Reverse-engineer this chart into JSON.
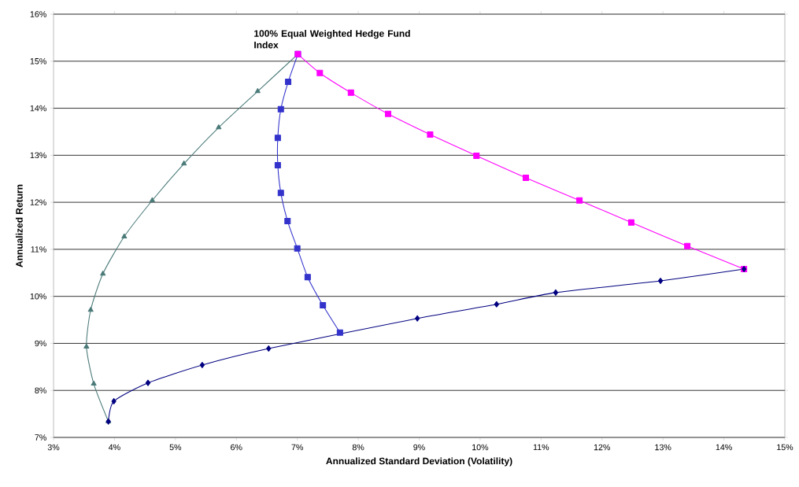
{
  "chart_data": {
    "type": "line",
    "xlabel": "Annualized Standard Deviation (Volatility)",
    "ylabel": "Annualized Return",
    "xlim": [
      3,
      15
    ],
    "ylim": [
      7,
      16
    ],
    "xticks": [
      {
        "value": 3,
        "label": "3%"
      },
      {
        "value": 4,
        "label": "4%"
      },
      {
        "value": 5,
        "label": "5%"
      },
      {
        "value": 6,
        "label": "6%"
      },
      {
        "value": 7,
        "label": "7%"
      },
      {
        "value": 8,
        "label": "8%"
      },
      {
        "value": 9,
        "label": "9%"
      },
      {
        "value": 10,
        "label": "10%"
      },
      {
        "value": 11,
        "label": "11%"
      },
      {
        "value": 12,
        "label": "12%"
      },
      {
        "value": 13,
        "label": "13%"
      },
      {
        "value": 14,
        "label": "14%"
      },
      {
        "value": 15,
        "label": "15%"
      }
    ],
    "yticks": [
      {
        "value": 7,
        "label": "7%"
      },
      {
        "value": 8,
        "label": "8%"
      },
      {
        "value": 9,
        "label": "9%"
      },
      {
        "value": 10,
        "label": "10%"
      },
      {
        "value": 11,
        "label": "11%"
      },
      {
        "value": 12,
        "label": "12%"
      },
      {
        "value": 13,
        "label": "13%"
      },
      {
        "value": 14,
        "label": "14%"
      },
      {
        "value": 15,
        "label": "15%"
      },
      {
        "value": 16,
        "label": "16%"
      }
    ],
    "grid": "y",
    "annotations": [
      {
        "text": "**100% Equal Weighted Hedge Fund Index**",
        "x": 7.0,
        "y": 15.15
      }
    ],
    "series": [
      {
        "color": "#4a7a78",
        "marker": "triangle",
        "x": [
          3.9,
          3.66,
          3.54,
          3.61,
          3.81,
          4.16,
          4.62,
          5.14,
          5.71,
          6.35,
          7.01
        ],
        "values": [
          7.34,
          8.14,
          8.93,
          9.71,
          10.48,
          11.27,
          12.04,
          12.82,
          13.59,
          14.36,
          15.15
        ]
      },
      {
        "color": "#3333cc",
        "marker": "square",
        "x": [
          7.01,
          6.85,
          6.73,
          6.68,
          6.68,
          6.73,
          6.84,
          7.0,
          7.17,
          7.42,
          7.7
        ],
        "values": [
          15.15,
          14.56,
          13.98,
          13.37,
          12.79,
          12.2,
          11.6,
          11.02,
          10.41,
          9.81,
          9.23
        ]
      },
      {
        "color": "#ff00ff",
        "marker": "square",
        "x": [
          7.01,
          7.37,
          7.88,
          8.49,
          9.18,
          9.94,
          10.75,
          11.63,
          12.48,
          13.4,
          14.33
        ],
        "values": [
          15.15,
          14.75,
          14.33,
          13.88,
          13.44,
          12.99,
          12.52,
          12.04,
          11.57,
          11.07,
          10.58
        ]
      },
      {
        "color": "#000080",
        "marker": "diamond",
        "x": [
          3.9,
          3.99,
          4.55,
          5.44,
          6.53,
          8.97,
          10.27,
          11.24,
          12.96,
          14.33
        ],
        "values": [
          7.34,
          7.77,
          8.16,
          8.54,
          8.89,
          9.53,
          9.83,
          10.08,
          10.33,
          10.58
        ]
      }
    ]
  }
}
